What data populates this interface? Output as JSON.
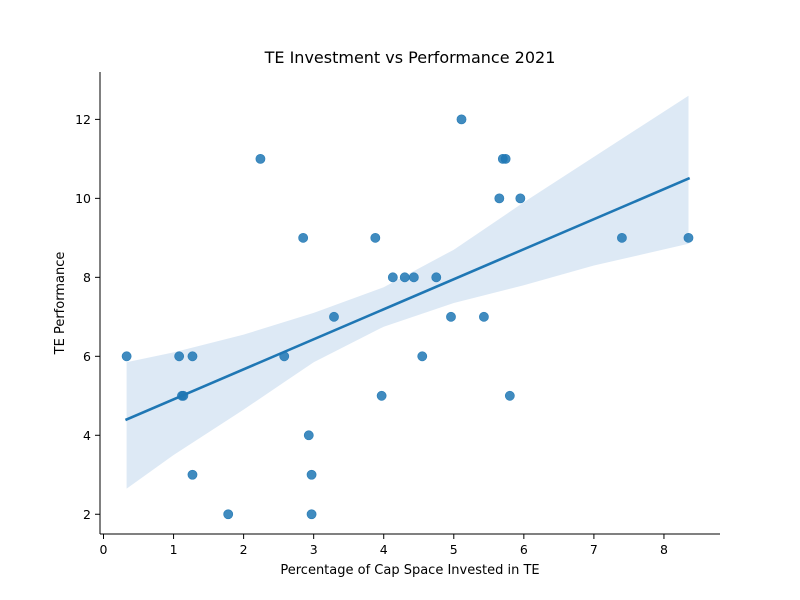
{
  "chart_data": {
    "type": "scatter",
    "title": "TE Investment vs Performance 2021",
    "xlabel": "Percentage of Cap Space Invested in TE",
    "ylabel": "TE Performance",
    "xlim": [
      -0.05,
      8.8
    ],
    "ylim": [
      1.5,
      13.2
    ],
    "xticks": [
      0,
      1,
      2,
      3,
      4,
      5,
      6,
      7,
      8
    ],
    "yticks": [
      2,
      4,
      6,
      8,
      10,
      12
    ],
    "grid": false,
    "legend": "none",
    "colors": {
      "points": "#1f77b4",
      "regression_line": "#1f77b4",
      "confidence_band": "#c6dbef"
    },
    "points": [
      {
        "x": 0.33,
        "y": 6
      },
      {
        "x": 1.08,
        "y": 6
      },
      {
        "x": 1.27,
        "y": 6
      },
      {
        "x": 1.12,
        "y": 5
      },
      {
        "x": 1.14,
        "y": 5
      },
      {
        "x": 1.27,
        "y": 3
      },
      {
        "x": 1.78,
        "y": 2
      },
      {
        "x": 2.24,
        "y": 11
      },
      {
        "x": 2.58,
        "y": 6
      },
      {
        "x": 2.85,
        "y": 9
      },
      {
        "x": 2.93,
        "y": 4
      },
      {
        "x": 2.97,
        "y": 3
      },
      {
        "x": 2.97,
        "y": 2
      },
      {
        "x": 3.29,
        "y": 7
      },
      {
        "x": 3.88,
        "y": 9
      },
      {
        "x": 3.97,
        "y": 5
      },
      {
        "x": 4.13,
        "y": 8
      },
      {
        "x": 4.3,
        "y": 8
      },
      {
        "x": 4.43,
        "y": 8
      },
      {
        "x": 4.55,
        "y": 6
      },
      {
        "x": 4.75,
        "y": 8
      },
      {
        "x": 4.96,
        "y": 7
      },
      {
        "x": 5.11,
        "y": 12
      },
      {
        "x": 5.43,
        "y": 7
      },
      {
        "x": 5.65,
        "y": 10
      },
      {
        "x": 5.7,
        "y": 11
      },
      {
        "x": 5.74,
        "y": 11
      },
      {
        "x": 5.8,
        "y": 5
      },
      {
        "x": 5.95,
        "y": 10
      },
      {
        "x": 7.4,
        "y": 9
      },
      {
        "x": 8.35,
        "y": 9
      }
    ],
    "regression_line": {
      "x": [
        0.33,
        8.35
      ],
      "y": [
        4.4,
        10.5
      ]
    },
    "confidence_band": {
      "x": [
        0.33,
        1.0,
        2.0,
        3.0,
        4.0,
        5.0,
        6.0,
        7.0,
        8.35
      ],
      "upper": [
        5.85,
        6.1,
        6.55,
        7.1,
        7.75,
        8.7,
        9.9,
        11.05,
        12.6
      ],
      "lower": [
        2.65,
        3.5,
        4.65,
        5.85,
        6.75,
        7.35,
        7.8,
        8.3,
        8.85
      ]
    }
  }
}
